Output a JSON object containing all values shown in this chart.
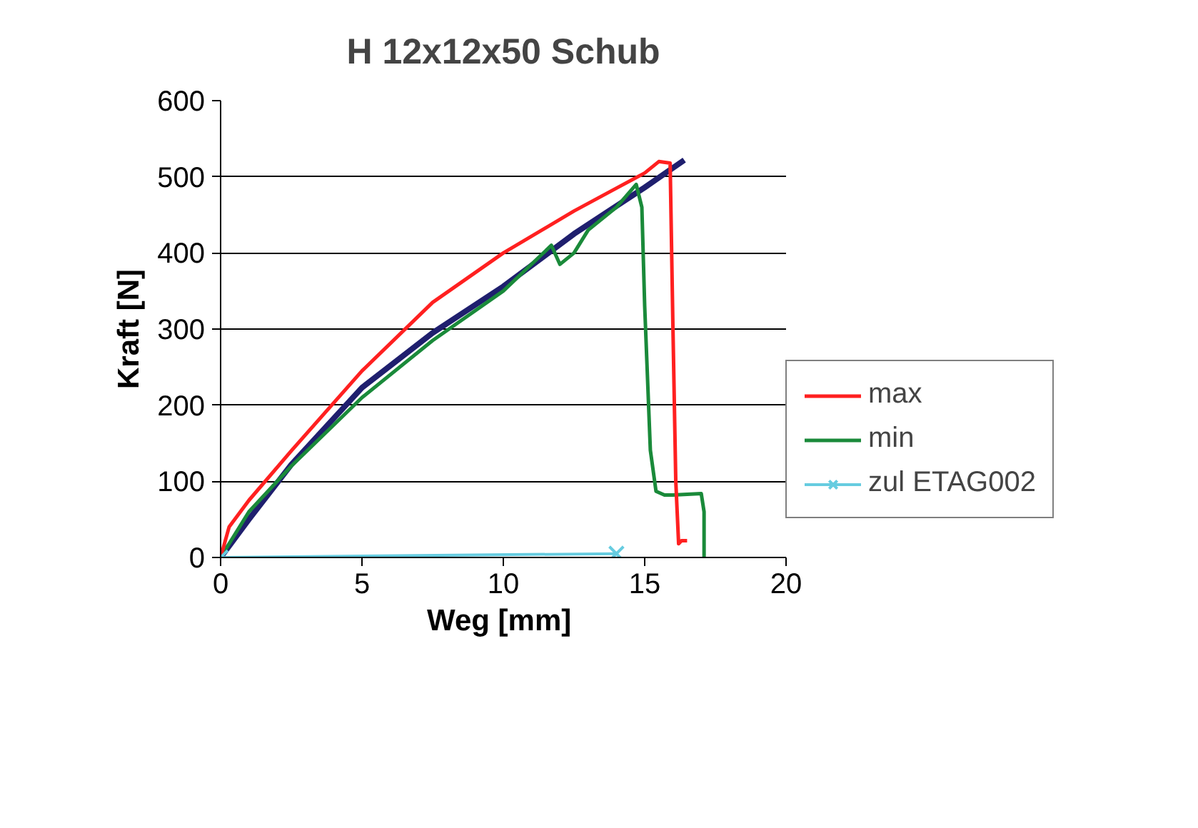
{
  "chart_data": {
    "type": "line",
    "title": "H 12x12x50 Schub",
    "xlabel": "Weg  [mm]",
    "ylabel": "Kraft [N]",
    "xlim": [
      0,
      20
    ],
    "ylim": [
      0,
      600
    ],
    "xticks": [
      0,
      5,
      10,
      15,
      20
    ],
    "yticks": [
      0,
      100,
      200,
      300,
      400,
      500,
      600
    ],
    "grid": "y",
    "legend": "right",
    "series": [
      {
        "color": "#1f1f6e",
        "x": [
          0,
          1,
          2.5,
          5,
          7.5,
          10,
          12.5,
          15,
          16.4
        ],
        "values": [
          0,
          50,
          122,
          223,
          295,
          356,
          425,
          486,
          522
        ]
      },
      {
        "name": "max",
        "color": "#ff2020",
        "x": [
          0,
          0.3,
          1,
          2.5,
          5,
          7.5,
          10,
          12.5,
          14,
          15,
          15.5,
          15.9,
          16.0,
          16.1,
          16.2,
          16.3,
          16.5
        ],
        "values": [
          0,
          40,
          75,
          140,
          245,
          335,
          400,
          455,
          485,
          505,
          520,
          518,
          300,
          100,
          18,
          22,
          22
        ]
      },
      {
        "name": "min",
        "color": "#1a8a3a",
        "x": [
          0,
          1,
          2.5,
          5,
          7.5,
          10,
          11.7,
          12,
          12.5,
          13,
          14,
          14.7,
          14.9,
          15.0,
          15.2,
          15.4,
          15.7,
          16.0,
          17.0,
          17.1,
          17.1
        ],
        "values": [
          0,
          60,
          120,
          210,
          285,
          350,
          410,
          385,
          400,
          430,
          460,
          490,
          460,
          330,
          141,
          87,
          82,
          82,
          84,
          60,
          0
        ]
      },
      {
        "name": "zul ETAG002",
        "color": "#66cce0",
        "marker": "cross",
        "x": [
          0,
          14
        ],
        "values": [
          0,
          5
        ]
      }
    ]
  }
}
